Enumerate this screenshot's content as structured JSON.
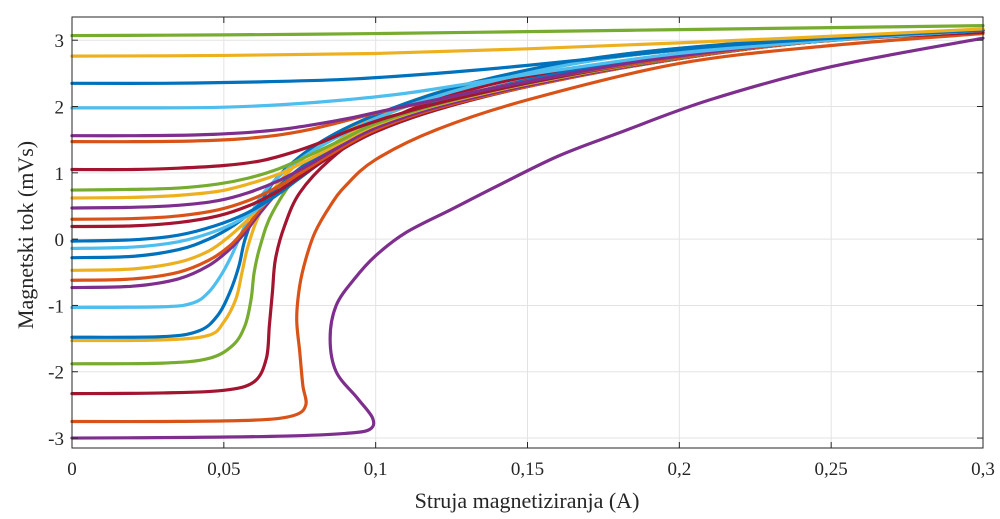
{
  "chart_data": {
    "type": "line",
    "title": "",
    "xlabel": "Struja magnetiziranja (A)",
    "ylabel": "Magnetski tok (mVs)",
    "xlim": [
      0,
      0.3
    ],
    "ylim": [
      -3.15,
      3.35
    ],
    "xticks": [
      0,
      0.05,
      0.1,
      0.15,
      0.2,
      0.25,
      0.3
    ],
    "xtick_labels": [
      "0",
      "0,05",
      "0,1",
      "0,15",
      "0,2",
      "0,25",
      "0,3"
    ],
    "yticks": [
      -3,
      -2,
      -1,
      0,
      1,
      2,
      3
    ],
    "ytick_labels": [
      "-3",
      "-2",
      "-1",
      "0",
      "1",
      "2",
      "3"
    ],
    "grid": true,
    "legend": "none",
    "series": [
      {
        "color": "#7E2F8E",
        "x": [
          0,
          0.04,
          0.07,
          0.09,
          0.098,
          0.099,
          0.094,
          0.087,
          0.085,
          0.087,
          0.093,
          0.1,
          0.11,
          0.125,
          0.14,
          0.16,
          0.18,
          0.21,
          0.25,
          0.3
        ],
        "y": [
          -3.0,
          -2.99,
          -2.97,
          -2.93,
          -2.87,
          -2.7,
          -2.4,
          -2.0,
          -1.5,
          -1.0,
          -0.6,
          -0.25,
          0.1,
          0.45,
          0.8,
          1.25,
          1.6,
          2.1,
          2.6,
          3.03
        ]
      },
      {
        "color": "#D95319",
        "x": [
          0,
          0.03,
          0.06,
          0.073,
          0.077,
          0.076,
          0.075,
          0.074,
          0.075,
          0.077,
          0.08,
          0.085,
          0.09,
          0.1,
          0.12,
          0.15,
          0.2,
          0.25,
          0.3
        ],
        "y": [
          -2.75,
          -2.75,
          -2.73,
          -2.66,
          -2.5,
          -2.2,
          -1.7,
          -1.2,
          -0.7,
          -0.3,
          0.1,
          0.5,
          0.8,
          1.2,
          1.65,
          2.1,
          2.65,
          2.92,
          3.1
        ]
      },
      {
        "color": "#A2142F",
        "x": [
          0,
          0.03,
          0.05,
          0.06,
          0.064,
          0.065,
          0.066,
          0.067,
          0.07,
          0.075,
          0.085,
          0.1,
          0.12,
          0.15,
          0.2,
          0.25,
          0.3
        ],
        "y": [
          -2.33,
          -2.32,
          -2.28,
          -2.15,
          -1.8,
          -1.3,
          -0.8,
          -0.3,
          0.2,
          0.7,
          1.2,
          1.7,
          2.1,
          2.45,
          2.8,
          3.0,
          3.12
        ]
      },
      {
        "color": "#77AC30",
        "x": [
          0,
          0.03,
          0.045,
          0.053,
          0.057,
          0.059,
          0.06,
          0.062,
          0.066,
          0.075,
          0.09,
          0.11,
          0.14,
          0.18,
          0.24,
          0.3
        ],
        "y": [
          -1.88,
          -1.87,
          -1.8,
          -1.6,
          -1.3,
          -0.9,
          -0.5,
          -0.1,
          0.4,
          1.0,
          1.55,
          2.0,
          2.4,
          2.75,
          3.0,
          3.15
        ]
      },
      {
        "color": "#EDB120",
        "x": [
          0,
          0.03,
          0.045,
          0.05,
          0.054,
          0.056,
          0.058,
          0.062,
          0.07,
          0.085,
          0.11,
          0.14,
          0.18,
          0.24,
          0.3
        ],
        "y": [
          -1.53,
          -1.52,
          -1.45,
          -1.25,
          -0.9,
          -0.5,
          -0.1,
          0.4,
          0.95,
          1.5,
          2.05,
          2.45,
          2.78,
          3.02,
          3.15
        ]
      },
      {
        "color": "#0072BD",
        "x": [
          0,
          0.03,
          0.042,
          0.048,
          0.052,
          0.055,
          0.057,
          0.061,
          0.069,
          0.085,
          0.11,
          0.14,
          0.18,
          0.24,
          0.3
        ],
        "y": [
          -1.48,
          -1.47,
          -1.38,
          -1.15,
          -0.8,
          -0.4,
          0.0,
          0.45,
          1.0,
          1.55,
          2.05,
          2.45,
          2.78,
          3.02,
          3.15
        ]
      },
      {
        "color": "#4DBEEE",
        "x": [
          0,
          0.03,
          0.04,
          0.045,
          0.049,
          0.052,
          0.055,
          0.058,
          0.064,
          0.075,
          0.09,
          0.11,
          0.14,
          0.18,
          0.24,
          0.3
        ],
        "y": [
          -1.03,
          -1.02,
          -0.96,
          -0.8,
          -0.55,
          -0.3,
          0.0,
          0.3,
          0.75,
          1.2,
          1.6,
          2.0,
          2.4,
          2.75,
          3.0,
          3.15
        ]
      },
      {
        "color": "#7E2F8E",
        "x": [
          0,
          0.02,
          0.035,
          0.045,
          0.052,
          0.057,
          0.062,
          0.07,
          0.085,
          0.1,
          0.13,
          0.17,
          0.23,
          0.3
        ],
        "y": [
          -0.73,
          -0.71,
          -0.6,
          -0.4,
          -0.15,
          0.1,
          0.4,
          0.8,
          1.3,
          1.7,
          2.15,
          2.55,
          2.92,
          3.15
        ]
      },
      {
        "color": "#D95319",
        "x": [
          0,
          0.02,
          0.035,
          0.045,
          0.052,
          0.057,
          0.062,
          0.07,
          0.085,
          0.1,
          0.13,
          0.17,
          0.23,
          0.3
        ],
        "y": [
          -0.62,
          -0.6,
          -0.5,
          -0.32,
          -0.1,
          0.15,
          0.45,
          0.85,
          1.35,
          1.75,
          2.15,
          2.55,
          2.92,
          3.15
        ]
      },
      {
        "color": "#EDB120",
        "x": [
          0,
          0.02,
          0.035,
          0.045,
          0.052,
          0.058,
          0.064,
          0.072,
          0.085,
          0.1,
          0.13,
          0.17,
          0.23,
          0.3
        ],
        "y": [
          -0.47,
          -0.45,
          -0.35,
          -0.18,
          0.05,
          0.3,
          0.6,
          0.95,
          1.4,
          1.75,
          2.15,
          2.55,
          2.92,
          3.15
        ]
      },
      {
        "color": "#0072BD",
        "x": [
          0,
          0.02,
          0.035,
          0.045,
          0.053,
          0.06,
          0.067,
          0.076,
          0.09,
          0.11,
          0.14,
          0.18,
          0.24,
          0.3
        ],
        "y": [
          -0.28,
          -0.26,
          -0.16,
          0.0,
          0.2,
          0.45,
          0.75,
          1.1,
          1.5,
          1.9,
          2.3,
          2.65,
          2.98,
          3.15
        ]
      },
      {
        "color": "#4DBEEE",
        "x": [
          0,
          0.02,
          0.035,
          0.046,
          0.055,
          0.063,
          0.071,
          0.08,
          0.095,
          0.115,
          0.14,
          0.18,
          0.24,
          0.3
        ],
        "y": [
          -0.14,
          -0.12,
          -0.04,
          0.1,
          0.28,
          0.52,
          0.82,
          1.15,
          1.55,
          1.9,
          2.25,
          2.62,
          2.96,
          3.15
        ]
      },
      {
        "color": "#0072BD",
        "x": [
          0,
          0.02,
          0.035,
          0.047,
          0.057,
          0.066,
          0.075,
          0.085,
          0.1,
          0.12,
          0.15,
          0.19,
          0.24,
          0.3
        ],
        "y": [
          -0.03,
          -0.01,
          0.06,
          0.2,
          0.38,
          0.62,
          0.92,
          1.25,
          1.62,
          1.95,
          2.3,
          2.65,
          2.96,
          3.15
        ]
      },
      {
        "color": "#A2142F",
        "x": [
          0,
          0.02,
          0.035,
          0.048,
          0.058,
          0.067,
          0.076,
          0.087,
          0.1,
          0.12,
          0.15,
          0.19,
          0.24,
          0.3
        ],
        "y": [
          0.19,
          0.2,
          0.25,
          0.35,
          0.5,
          0.7,
          0.97,
          1.3,
          1.62,
          1.95,
          2.3,
          2.65,
          2.96,
          3.15
        ]
      },
      {
        "color": "#D95319",
        "x": [
          0,
          0.02,
          0.035,
          0.048,
          0.058,
          0.067,
          0.076,
          0.087,
          0.1,
          0.12,
          0.15,
          0.19,
          0.24,
          0.3
        ],
        "y": [
          0.3,
          0.31,
          0.35,
          0.44,
          0.58,
          0.77,
          1.02,
          1.33,
          1.65,
          1.97,
          2.3,
          2.65,
          2.96,
          3.15
        ]
      },
      {
        "color": "#7E2F8E",
        "x": [
          0,
          0.02,
          0.035,
          0.048,
          0.058,
          0.068,
          0.078,
          0.089,
          0.1,
          0.12,
          0.15,
          0.19,
          0.24,
          0.3
        ],
        "y": [
          0.47,
          0.48,
          0.51,
          0.58,
          0.7,
          0.88,
          1.12,
          1.42,
          1.68,
          1.99,
          2.32,
          2.66,
          2.96,
          3.15
        ]
      },
      {
        "color": "#EDB120",
        "x": [
          0,
          0.02,
          0.035,
          0.048,
          0.058,
          0.068,
          0.078,
          0.089,
          0.1,
          0.12,
          0.15,
          0.19,
          0.24,
          0.3
        ],
        "y": [
          0.62,
          0.63,
          0.66,
          0.72,
          0.83,
          0.98,
          1.2,
          1.47,
          1.72,
          2.02,
          2.34,
          2.67,
          2.96,
          3.15
        ]
      },
      {
        "color": "#77AC30",
        "x": [
          0,
          0.02,
          0.035,
          0.048,
          0.058,
          0.068,
          0.078,
          0.089,
          0.1,
          0.12,
          0.15,
          0.19,
          0.24,
          0.3
        ],
        "y": [
          0.74,
          0.75,
          0.77,
          0.83,
          0.92,
          1.06,
          1.26,
          1.5,
          1.74,
          2.03,
          2.35,
          2.67,
          2.96,
          3.15
        ]
      },
      {
        "color": "#A2142F",
        "x": [
          0,
          0.02,
          0.035,
          0.05,
          0.062,
          0.072,
          0.082,
          0.092,
          0.105,
          0.125,
          0.155,
          0.19,
          0.24,
          0.3
        ],
        "y": [
          1.05,
          1.05,
          1.07,
          1.11,
          1.18,
          1.3,
          1.46,
          1.65,
          1.85,
          2.1,
          2.4,
          2.68,
          2.96,
          3.15
        ]
      },
      {
        "color": "#D95319",
        "x": [
          0,
          0.02,
          0.04,
          0.055,
          0.068,
          0.078,
          0.088,
          0.1,
          0.12,
          0.15,
          0.19,
          0.24,
          0.3
        ],
        "y": [
          1.47,
          1.47,
          1.48,
          1.51,
          1.57,
          1.65,
          1.76,
          1.9,
          2.1,
          2.38,
          2.68,
          2.96,
          3.15
        ]
      },
      {
        "color": "#7E2F8E",
        "x": [
          0,
          0.02,
          0.04,
          0.055,
          0.068,
          0.08,
          0.092,
          0.105,
          0.125,
          0.155,
          0.19,
          0.24,
          0.3
        ],
        "y": [
          1.56,
          1.56,
          1.57,
          1.6,
          1.65,
          1.73,
          1.83,
          1.96,
          2.15,
          2.42,
          2.7,
          2.97,
          3.15
        ]
      },
      {
        "color": "#4DBEEE",
        "x": [
          0,
          0.03,
          0.05,
          0.07,
          0.09,
          0.11,
          0.13,
          0.16,
          0.2,
          0.25,
          0.3
        ],
        "y": [
          1.98,
          1.98,
          1.99,
          2.03,
          2.1,
          2.2,
          2.34,
          2.55,
          2.8,
          3.0,
          3.15
        ]
      },
      {
        "color": "#0072BD",
        "x": [
          0,
          0.03,
          0.06,
          0.09,
          0.12,
          0.15,
          0.18,
          0.21,
          0.25,
          0.3
        ],
        "y": [
          2.35,
          2.35,
          2.37,
          2.41,
          2.5,
          2.62,
          2.76,
          2.9,
          3.03,
          3.15
        ]
      },
      {
        "color": "#EDB120",
        "x": [
          0,
          0.05,
          0.1,
          0.15,
          0.2,
          0.25,
          0.3
        ],
        "y": [
          2.76,
          2.77,
          2.8,
          2.87,
          2.96,
          3.06,
          3.17
        ]
      },
      {
        "color": "#77AC30",
        "x": [
          0,
          0.05,
          0.1,
          0.15,
          0.2,
          0.25,
          0.3
        ],
        "y": [
          3.07,
          3.08,
          3.1,
          3.13,
          3.16,
          3.19,
          3.22
        ]
      }
    ]
  }
}
